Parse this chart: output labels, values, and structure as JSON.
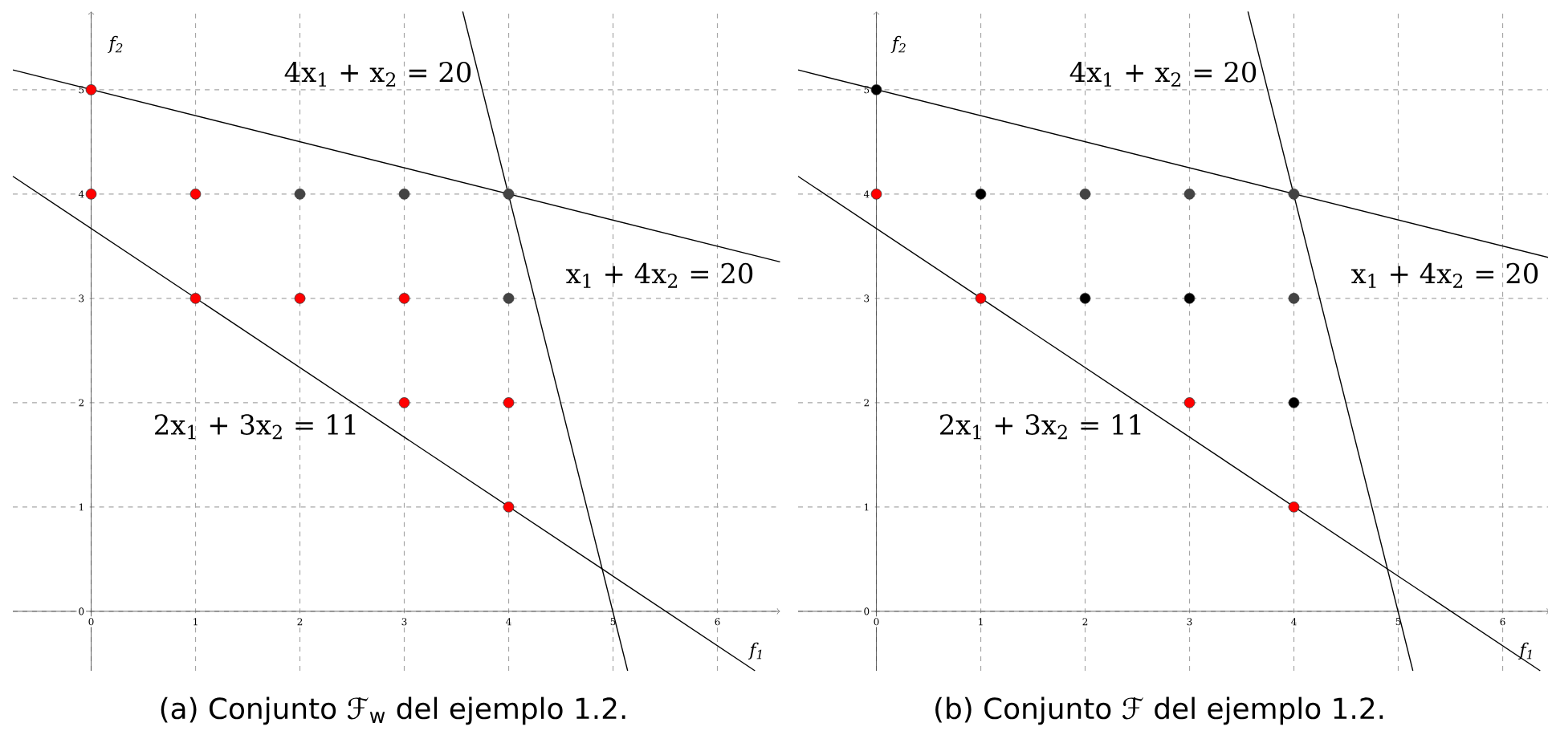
{
  "chart_data": [
    {
      "type": "scatter",
      "xlabel": "f$_{1}$",
      "ylabel": "f$_{2}$",
      "xlim": [
        -0.75,
        6.6
      ],
      "ylim": [
        -0.57,
        5.75
      ],
      "xticks": [
        0,
        1,
        2,
        3,
        4,
        5,
        6
      ],
      "yticks": [
        0,
        1,
        2,
        3,
        4,
        5
      ],
      "grid": true,
      "marker": "circle",
      "series": [
        {
          "type": "line",
          "marker": "none",
          "color": "#000000",
          "x": [
            -0.75,
            6.6
          ],
          "values": [
            5.19,
            3.35
          ]
        },
        {
          "type": "line",
          "marker": "none",
          "color": "#000000",
          "x": [
            3.56,
            5.14
          ],
          "values": [
            5.75,
            -0.57
          ]
        },
        {
          "type": "line",
          "marker": "none",
          "color": "#000000",
          "x": [
            -0.75,
            6.36
          ],
          "values": [
            4.17,
            -0.57
          ]
        },
        {
          "color": "#ff0000",
          "x": [
            0,
            0,
            1,
            1,
            2,
            3,
            3,
            4,
            4
          ],
          "values": [
            5,
            4,
            4,
            3,
            3,
            3,
            2,
            2,
            1
          ]
        },
        {
          "color": "#444444",
          "x": [
            2,
            3,
            4,
            4
          ],
          "values": [
            4,
            4,
            4,
            3
          ]
        }
      ],
      "annotations": [
        "4x$_{1}$ + x$_{2}$ = 20",
        "x$_{1}$ + 4x$_{2}$ = 20",
        "2x$_{1}$ + 3x$_{2}$ = 11",
        "(a) Conjunto ℱ$_{w}$ del ejemplo 1.2."
      ]
    },
    {
      "type": "scatter",
      "xlabel": "f$_{1}$",
      "ylabel": "f$_{2}$",
      "xlim": [
        -0.75,
        6.45
      ],
      "ylim": [
        -0.57,
        5.75
      ],
      "xticks": [
        0,
        1,
        2,
        3,
        4,
        5,
        6
      ],
      "yticks": [
        0,
        1,
        2,
        3,
        4,
        5
      ],
      "grid": true,
      "marker": "circle",
      "series": [
        {
          "type": "line",
          "marker": "none",
          "color": "#000000",
          "x": [
            -0.75,
            6.45
          ],
          "values": [
            5.19,
            3.39
          ]
        },
        {
          "type": "line",
          "marker": "none",
          "color": "#000000",
          "x": [
            3.56,
            5.14
          ],
          "values": [
            5.75,
            -0.57
          ]
        },
        {
          "type": "line",
          "marker": "none",
          "color": "#000000",
          "x": [
            -0.75,
            6.36
          ],
          "values": [
            4.17,
            -0.57
          ]
        },
        {
          "color": "#ff0000",
          "x": [
            0,
            1,
            3,
            4
          ],
          "values": [
            4,
            3,
            2,
            1
          ]
        },
        {
          "color": "#000000",
          "x": [
            0,
            1,
            2,
            3,
            4
          ],
          "values": [
            5,
            4,
            3,
            3,
            2
          ]
        },
        {
          "color": "#444444",
          "x": [
            2,
            3,
            4,
            4
          ],
          "values": [
            4,
            4,
            4,
            3
          ]
        }
      ],
      "annotations": [
        "4x$_{1}$ + x$_{2}$ = 20",
        "x$_{1}$ + 4x$_{2}$ = 20",
        "2x$_{1}$ + 3x$_{2}$ = 11",
        "(b) Conjunto ℱ del ejemplo 1.2."
      ]
    }
  ]
}
